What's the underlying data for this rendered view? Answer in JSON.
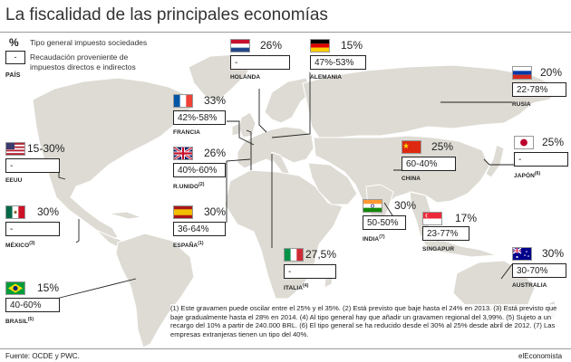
{
  "title": "La fiscalidad de las principales economías",
  "legend": {
    "pct_symbol": "%",
    "pct_text": "Tipo general impuesto sociedades",
    "box_symbol": "-",
    "box_text_1": "Recaudación proveniente de",
    "box_text_2": "impuestos directos e indirectos",
    "pais": "PAÍS"
  },
  "countries": {
    "holanda": {
      "name": "HOLANDA",
      "rate": "26%",
      "revenue": "-"
    },
    "alemania": {
      "name": "ALEMANIA",
      "rate": "15%",
      "revenue": "47%-53%"
    },
    "rusia": {
      "name": "RUSIA",
      "rate": "20%",
      "revenue": "22-78%"
    },
    "francia": {
      "name": "FRANCIA",
      "rate": "33%",
      "revenue": "42%-58%"
    },
    "reino_unido": {
      "name": "R.UNIDO",
      "note": "(2)",
      "rate": "26%",
      "revenue": "40%-60%"
    },
    "eeuu": {
      "name": "EEUU",
      "rate": "15-30%",
      "revenue": "-"
    },
    "china": {
      "name": "CHINA",
      "rate": "25%",
      "revenue": "60-40%"
    },
    "japon": {
      "name": "JAPÓN",
      "note": "(6)",
      "rate": "25%",
      "revenue": "-"
    },
    "mexico": {
      "name": "MÉXICO",
      "note": "(3)",
      "rate": "30%",
      "revenue": "-"
    },
    "espana": {
      "name": "ESPAÑA",
      "note": "(1)",
      "rate": "30%",
      "revenue": "36-64%"
    },
    "india": {
      "name": "INDIA",
      "note": "(7)",
      "rate": "30%",
      "revenue": "50-50%"
    },
    "singapur": {
      "name": "SINGAPUR",
      "rate": "17%",
      "revenue": "23-77%"
    },
    "italia": {
      "name": "ITALIA",
      "note": "(4)",
      "rate": "27,5%",
      "revenue": "-"
    },
    "australia": {
      "name": "AUSTRALIA",
      "rate": "30%",
      "revenue": "30-70%"
    },
    "brasil": {
      "name": "BRASIL",
      "note": "(5)",
      "rate": "15%",
      "revenue": "40-60%"
    }
  },
  "footnotes": "(1) Este gravamen puede oscilar entre el 25% y el 35%. (2) Está previsto que baje hasta el 24% en 2013. (3) Está previsto que baje gradualmente hasta el 28% en 2014. (4) Al tipo general hay que añadir un gravamen regional del 3,99%. (5) Sujeto a un recargo del 10% a partir de 240.000 BRL. (6) El tipo general se ha reducido desde el 30% al 25% desde abril de 2012. (7) Las empresas extranjeras tienen un tipo del 40%.",
  "source": "Fuente: OCDE y PWC.",
  "brand": "elEconomista",
  "colors": {
    "land": "#dddbd3",
    "ocean": "#ffffff",
    "borders": "#ffffff",
    "leader": "#222222"
  }
}
